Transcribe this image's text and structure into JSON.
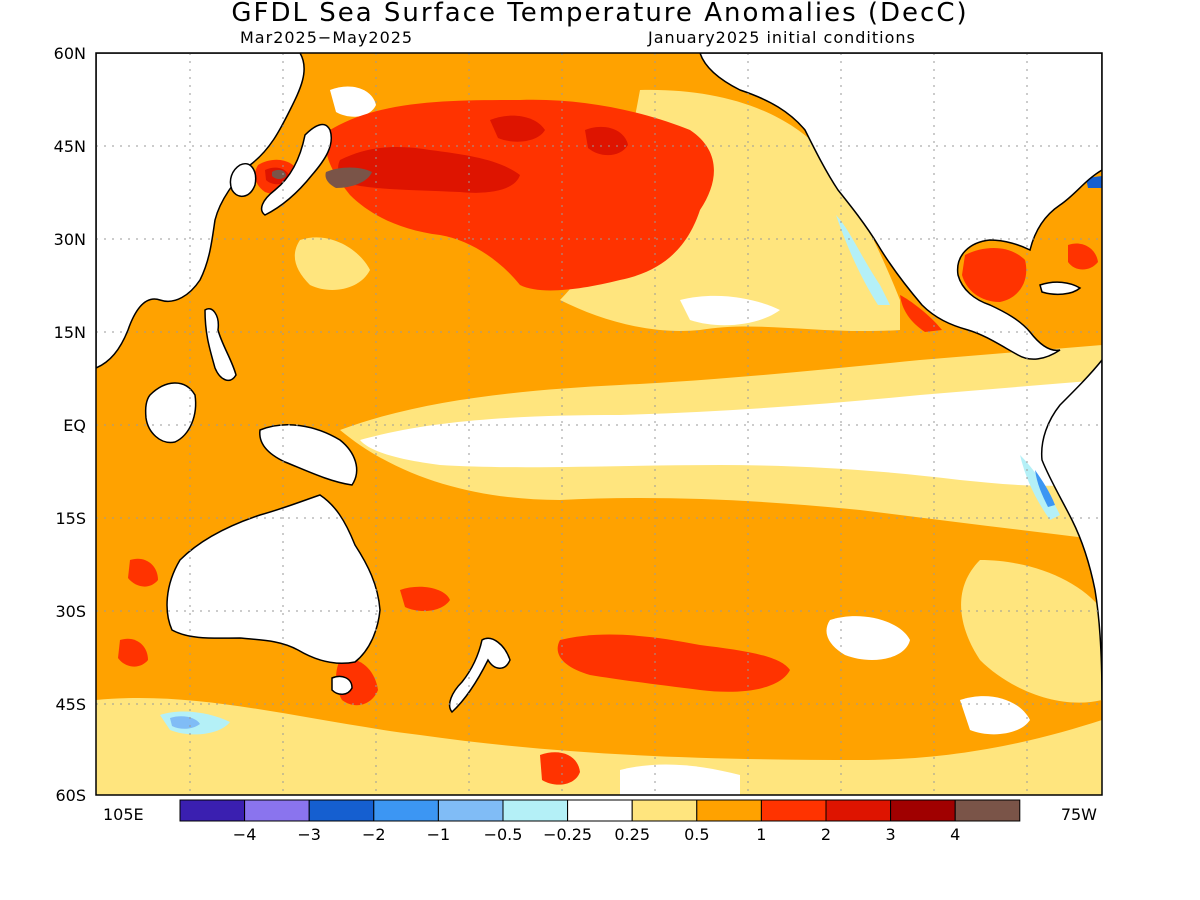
{
  "title": "GFDL Sea Surface Temperature Anomalies (DecC)",
  "subtitle_left": "Mar2025−May2025",
  "subtitle_right": "January2025 initial conditions",
  "lat_labels": [
    "60N",
    "45N",
    "30N",
    "15N",
    "EQ",
    "15S",
    "30S",
    "45S",
    "60S"
  ],
  "lon_left": "105E",
  "lon_right": "75W",
  "colorbar": {
    "colors": [
      "#3a1fb0",
      "#8a74ee",
      "#155fd0",
      "#3c96f3",
      "#80bcf6",
      "#b4f0f7",
      "#ffffff",
      "#ffe57e",
      "#ffa200",
      "#ff3300",
      "#de1400",
      "#a00000",
      "#7a5448"
    ],
    "labels": [
      "−4",
      "−3",
      "−2",
      "−1",
      "−0.5",
      "−0.25",
      "0.25",
      "0.5",
      "1",
      "2",
      "3",
      "4"
    ]
  },
  "palette": {
    "ocean_warm": "#ffa200",
    "ocean_mild": "#ffe57e",
    "neutral": "#ffffff",
    "hot": "#ff3300",
    "very_hot": "#de1400",
    "extreme": "#7a5448",
    "cool": "#b4f0f7",
    "cold": "#3c96f3"
  }
}
